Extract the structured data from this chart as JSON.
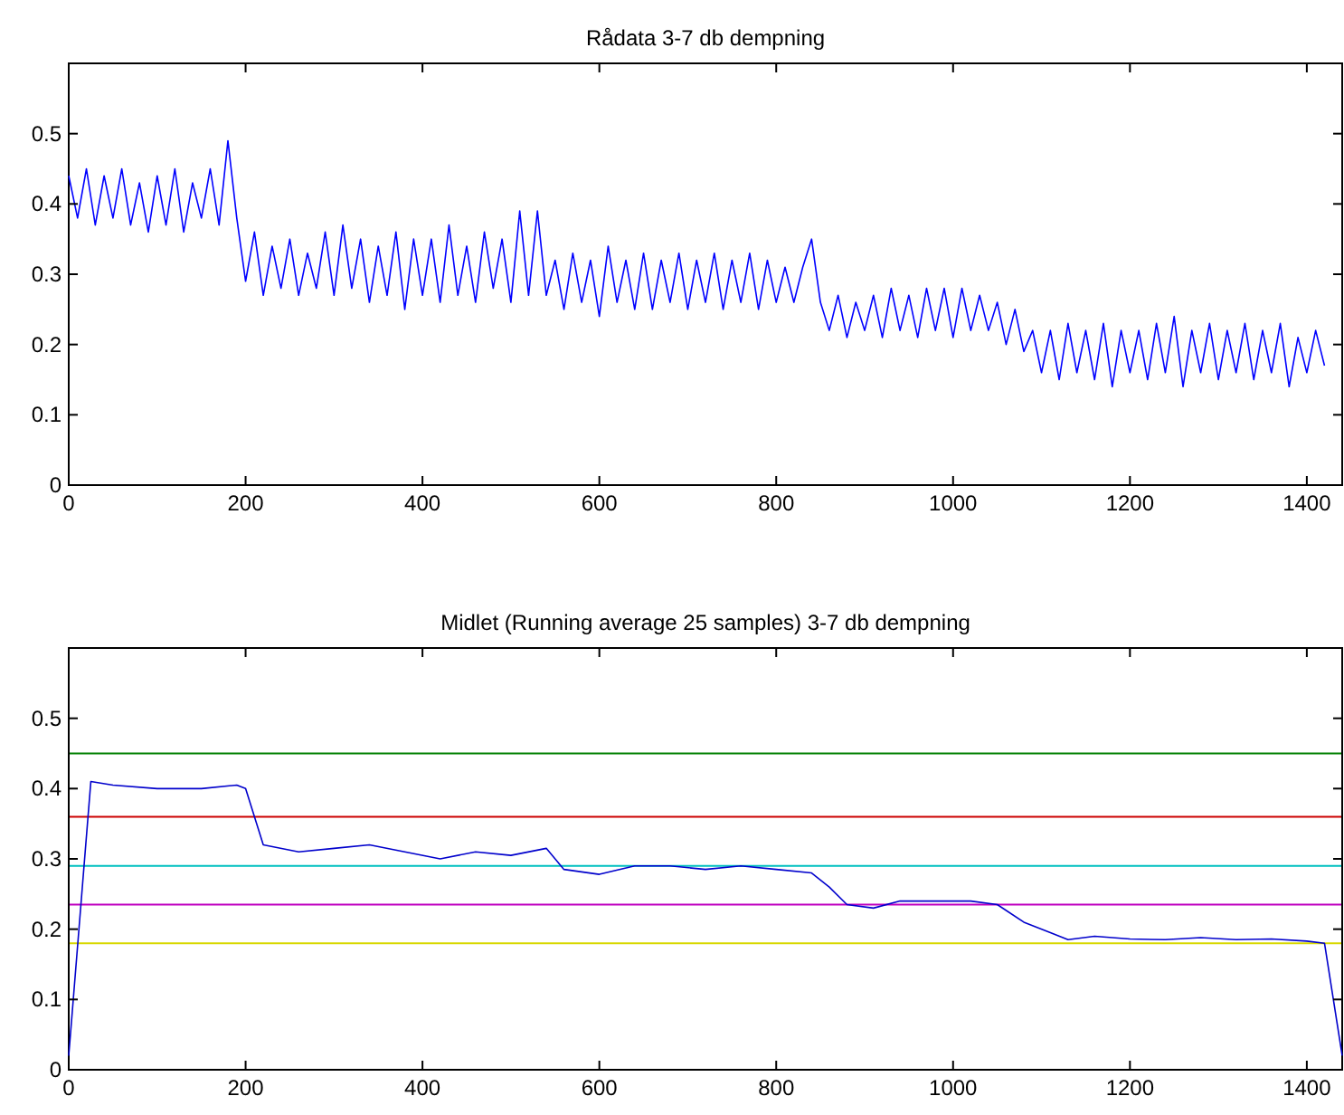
{
  "chart_data": [
    {
      "type": "line",
      "title": "Rådata 3-7 db dempning",
      "xlim": [
        0,
        1440
      ],
      "ylim": [
        0,
        0.6
      ],
      "xticks": [
        0,
        200,
        400,
        600,
        800,
        1000,
        1200,
        1400
      ],
      "yticks": [
        0,
        0.1,
        0.2,
        0.3,
        0.4,
        0.5
      ],
      "x": [
        0,
        10,
        20,
        30,
        40,
        50,
        60,
        70,
        80,
        90,
        100,
        110,
        120,
        130,
        140,
        150,
        160,
        170,
        180,
        190,
        200,
        210,
        220,
        230,
        240,
        250,
        260,
        270,
        280,
        290,
        300,
        310,
        320,
        330,
        340,
        350,
        360,
        370,
        380,
        390,
        400,
        410,
        420,
        430,
        440,
        450,
        460,
        470,
        480,
        490,
        500,
        510,
        520,
        530,
        540,
        550,
        560,
        570,
        580,
        590,
        600,
        610,
        620,
        630,
        640,
        650,
        660,
        670,
        680,
        690,
        700,
        710,
        720,
        730,
        740,
        750,
        760,
        770,
        780,
        790,
        800,
        810,
        820,
        830,
        840,
        850,
        860,
        870,
        880,
        890,
        900,
        910,
        920,
        930,
        940,
        950,
        960,
        970,
        980,
        990,
        1000,
        1010,
        1020,
        1030,
        1040,
        1050,
        1060,
        1070,
        1080,
        1090,
        1100,
        1110,
        1120,
        1130,
        1140,
        1150,
        1160,
        1170,
        1180,
        1190,
        1200,
        1210,
        1220,
        1230,
        1240,
        1250,
        1260,
        1270,
        1280,
        1290,
        1300,
        1310,
        1320,
        1330,
        1340,
        1350,
        1360,
        1370,
        1380,
        1390,
        1400,
        1410,
        1420
      ],
      "series": [
        {
          "color": "#0000ff",
          "values": [
            0.44,
            0.38,
            0.45,
            0.37,
            0.44,
            0.38,
            0.45,
            0.37,
            0.43,
            0.36,
            0.44,
            0.37,
            0.45,
            0.36,
            0.43,
            0.38,
            0.45,
            0.37,
            0.49,
            0.38,
            0.29,
            0.36,
            0.27,
            0.34,
            0.28,
            0.35,
            0.27,
            0.33,
            0.28,
            0.36,
            0.27,
            0.37,
            0.28,
            0.35,
            0.26,
            0.34,
            0.27,
            0.36,
            0.25,
            0.35,
            0.27,
            0.35,
            0.26,
            0.37,
            0.27,
            0.34,
            0.26,
            0.36,
            0.28,
            0.35,
            0.26,
            0.39,
            0.27,
            0.39,
            0.27,
            0.32,
            0.25,
            0.33,
            0.26,
            0.32,
            0.24,
            0.34,
            0.26,
            0.32,
            0.25,
            0.33,
            0.25,
            0.32,
            0.26,
            0.33,
            0.25,
            0.32,
            0.26,
            0.33,
            0.25,
            0.32,
            0.26,
            0.33,
            0.25,
            0.32,
            0.26,
            0.31,
            0.26,
            0.31,
            0.35,
            0.26,
            0.22,
            0.27,
            0.21,
            0.26,
            0.22,
            0.27,
            0.21,
            0.28,
            0.22,
            0.27,
            0.21,
            0.28,
            0.22,
            0.28,
            0.21,
            0.28,
            0.22,
            0.27,
            0.22,
            0.26,
            0.2,
            0.25,
            0.19,
            0.22,
            0.16,
            0.22,
            0.15,
            0.23,
            0.16,
            0.22,
            0.15,
            0.23,
            0.14,
            0.22,
            0.16,
            0.22,
            0.15,
            0.23,
            0.16,
            0.24,
            0.14,
            0.22,
            0.16,
            0.23,
            0.15,
            0.22,
            0.16,
            0.23,
            0.15,
            0.22,
            0.16,
            0.23,
            0.14,
            0.21,
            0.16,
            0.22,
            0.17
          ]
        }
      ]
    },
    {
      "type": "line",
      "title": "Midlet (Running average 25 samples) 3-7 db dempning",
      "xlim": [
        0,
        1440
      ],
      "ylim": [
        0,
        0.6
      ],
      "xticks": [
        0,
        200,
        400,
        600,
        800,
        1000,
        1200,
        1400
      ],
      "yticks": [
        0,
        0.1,
        0.2,
        0.3,
        0.4,
        0.5
      ],
      "x": [
        0,
        25,
        50,
        100,
        150,
        190,
        200,
        220,
        260,
        300,
        340,
        380,
        420,
        460,
        500,
        540,
        560,
        600,
        640,
        680,
        720,
        760,
        800,
        840,
        860,
        880,
        910,
        940,
        980,
        1020,
        1050,
        1080,
        1110,
        1130,
        1160,
        1200,
        1240,
        1280,
        1320,
        1360,
        1400,
        1420,
        1440
      ],
      "series": [
        {
          "color": "#0000cc",
          "values": [
            0.02,
            0.41,
            0.405,
            0.4,
            0.4,
            0.405,
            0.4,
            0.32,
            0.31,
            0.315,
            0.32,
            0.31,
            0.3,
            0.31,
            0.305,
            0.315,
            0.285,
            0.278,
            0.29,
            0.29,
            0.285,
            0.29,
            0.285,
            0.28,
            0.26,
            0.235,
            0.23,
            0.24,
            0.24,
            0.24,
            0.235,
            0.21,
            0.195,
            0.185,
            0.19,
            0.186,
            0.185,
            0.188,
            0.185,
            0.186,
            0.183,
            0.18,
            0.02
          ]
        }
      ],
      "ref_lines": [
        {
          "axis": "y",
          "value": 0.45,
          "color": "#008000"
        },
        {
          "axis": "y",
          "value": 0.36,
          "color": "#cc0000"
        },
        {
          "axis": "y",
          "value": 0.29,
          "color": "#00bfbf"
        },
        {
          "axis": "y",
          "value": 0.235,
          "color": "#bf00bf"
        },
        {
          "axis": "y",
          "value": 0.18,
          "color": "#d8d800"
        }
      ]
    }
  ]
}
